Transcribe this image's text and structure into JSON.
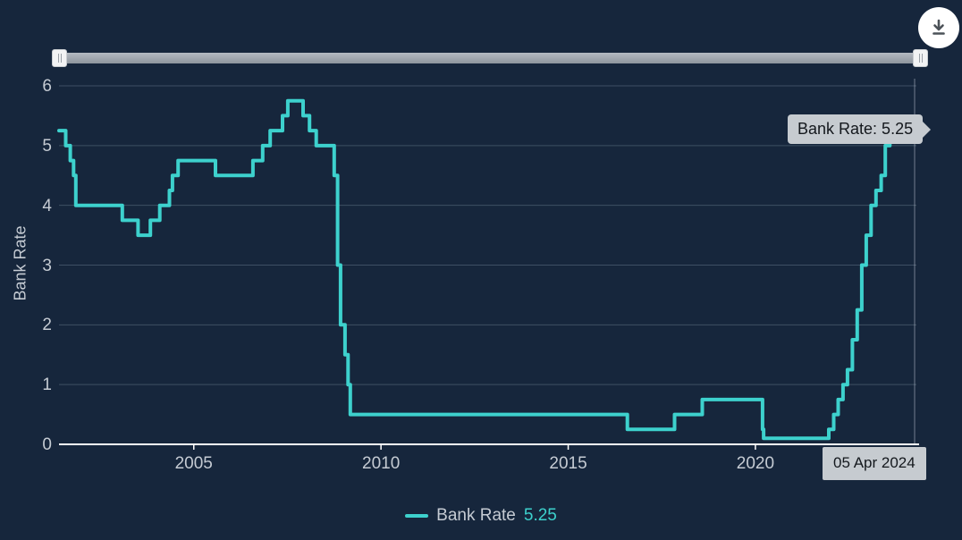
{
  "app": {
    "background": "#16263c",
    "accent": "#3dd1cd",
    "grid_color": "rgba(170,185,205,0.28)",
    "axis_color": "#ffffff",
    "label_color": "#c5cbd3",
    "tooltip_bg": "#c6cbd0"
  },
  "toolbar": {
    "download_icon": "download"
  },
  "tooltip": {
    "label": "Bank Rate: 5.25"
  },
  "crosshair_label": {
    "date": "05 Apr 2024"
  },
  "legend": {
    "series_label": "Bank Rate",
    "value": "5.25"
  },
  "axes": {
    "y_title": "Bank Rate"
  },
  "chart_data": {
    "type": "line",
    "step": true,
    "title": "",
    "xlabel": "",
    "ylabel": "Bank Rate",
    "x_range": [
      2001.4,
      2024.3
    ],
    "ylim": [
      0,
      6.2
    ],
    "x_ticks": [
      2005,
      2010,
      2015,
      2020
    ],
    "y_ticks": [
      0,
      1,
      2,
      3,
      4,
      5,
      6
    ],
    "grid": "horizontal",
    "legend_position": "bottom",
    "last_point": {
      "date": "05 Apr 2024",
      "value": 5.25
    },
    "series": [
      {
        "name": "Bank Rate",
        "color": "#3dd1cd",
        "points": [
          [
            2001.4,
            5.25
          ],
          [
            2001.58,
            5.0
          ],
          [
            2001.7,
            4.75
          ],
          [
            2001.79,
            4.5
          ],
          [
            2001.85,
            4.0
          ],
          [
            2003.09,
            3.75
          ],
          [
            2003.51,
            3.5
          ],
          [
            2003.84,
            3.75
          ],
          [
            2004.09,
            4.0
          ],
          [
            2004.35,
            4.25
          ],
          [
            2004.43,
            4.5
          ],
          [
            2004.58,
            4.75
          ],
          [
            2005.58,
            4.5
          ],
          [
            2006.58,
            4.75
          ],
          [
            2006.84,
            5.0
          ],
          [
            2007.04,
            5.25
          ],
          [
            2007.37,
            5.5
          ],
          [
            2007.51,
            5.75
          ],
          [
            2007.92,
            5.5
          ],
          [
            2008.09,
            5.25
          ],
          [
            2008.27,
            5.0
          ],
          [
            2008.75,
            4.5
          ],
          [
            2008.84,
            3.0
          ],
          [
            2008.92,
            2.0
          ],
          [
            2009.04,
            1.5
          ],
          [
            2009.12,
            1.0
          ],
          [
            2009.18,
            0.5
          ],
          [
            2016.58,
            0.25
          ],
          [
            2017.84,
            0.5
          ],
          [
            2018.58,
            0.75
          ],
          [
            2020.19,
            0.25
          ],
          [
            2020.22,
            0.1
          ],
          [
            2021.96,
            0.25
          ],
          [
            2022.09,
            0.5
          ],
          [
            2022.21,
            0.75
          ],
          [
            2022.34,
            1.0
          ],
          [
            2022.46,
            1.25
          ],
          [
            2022.59,
            1.75
          ],
          [
            2022.72,
            2.25
          ],
          [
            2022.84,
            3.0
          ],
          [
            2022.96,
            3.5
          ],
          [
            2023.09,
            4.0
          ],
          [
            2023.22,
            4.25
          ],
          [
            2023.36,
            4.5
          ],
          [
            2023.47,
            5.0
          ],
          [
            2023.59,
            5.25
          ],
          [
            2024.26,
            5.25
          ]
        ]
      }
    ]
  }
}
